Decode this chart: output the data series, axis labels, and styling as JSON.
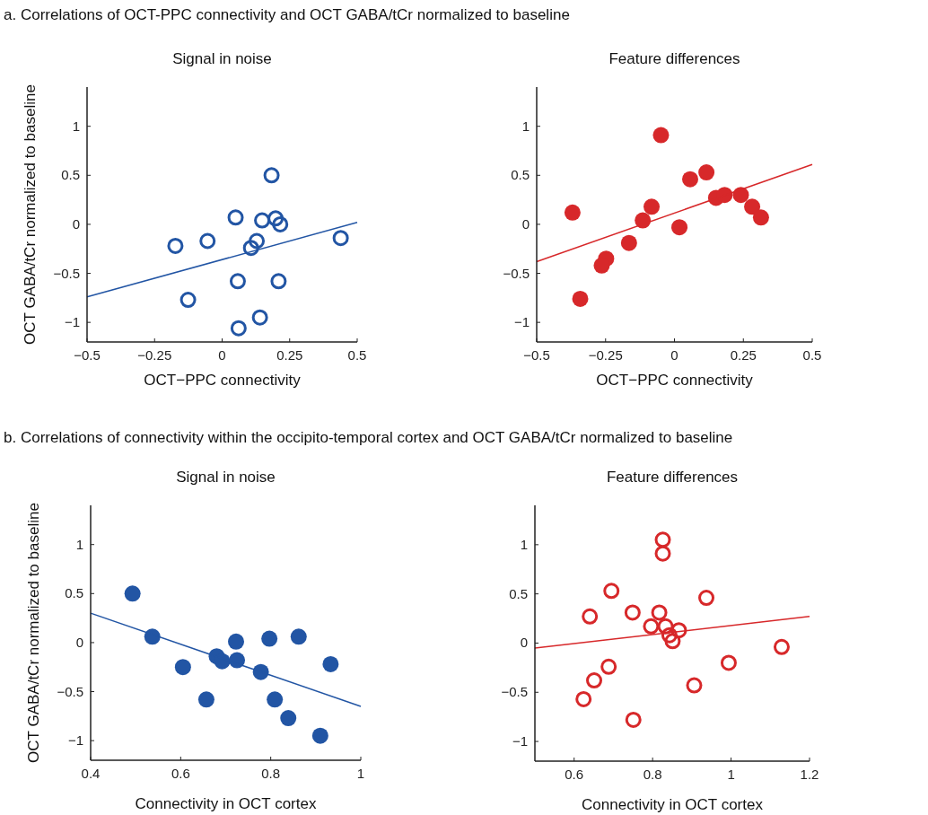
{
  "chart_data": [
    {
      "type": "scatter",
      "title": "Signal in noise",
      "xlabel": "OCT−PPC connectivity",
      "ylabel": "OCT GABA/tCr normalized to baseline",
      "annotations": [
        "a. Correlations of OCT-PPC connectivity and OCT GABA/tCr normalized to baseline"
      ],
      "xlim": [
        -0.5,
        0.5
      ],
      "ylim": [
        -1.2,
        1.4
      ],
      "xticks": [
        -0.5,
        -0.25,
        0,
        0.25,
        0.5
      ],
      "yticks": [
        -1,
        -0.5,
        0,
        0.5,
        1
      ],
      "grid": false,
      "series": [
        {
          "type": "scatter",
          "marker": "circle",
          "color": "#2255a4",
          "x": [
            -0.173,
            -0.054,
            -0.126,
            0.05,
            0.058,
            0.061,
            0.148,
            0.128,
            0.107,
            0.183,
            0.198,
            0.215,
            0.209,
            0.14,
            0.439
          ],
          "values": [
            -0.22,
            -0.17,
            -0.77,
            0.07,
            -0.58,
            -1.06,
            0.04,
            -0.17,
            -0.24,
            0.5,
            0.06,
            0.0,
            -0.58,
            -0.95,
            -0.14
          ]
        },
        {
          "type": "line",
          "color": "#2255a4",
          "x": [
            -0.5,
            0.5
          ],
          "values": [
            -0.74,
            0.02
          ]
        }
      ]
    },
    {
      "type": "scatter",
      "title": "Feature differences",
      "xlabel": "OCT−PPC connectivity",
      "xlim": [
        -0.5,
        0.5
      ],
      "ylim": [
        -1.2,
        1.4
      ],
      "xticks": [
        -0.5,
        -0.25,
        0,
        0.25,
        0.5
      ],
      "yticks": [
        -1,
        -0.5,
        0,
        0.5,
        1
      ],
      "grid": false,
      "series": [
        {
          "type": "scatter",
          "marker": "circle",
          "color": "#d7282a",
          "x": [
            -0.37,
            -0.342,
            -0.049,
            -0.083,
            -0.115,
            -0.165,
            -0.248,
            -0.264,
            0.018,
            0.057,
            0.116,
            0.151,
            0.182,
            0.241,
            0.282,
            0.314
          ],
          "values": [
            0.12,
            -0.76,
            0.91,
            0.18,
            0.04,
            -0.19,
            -0.35,
            -0.42,
            -0.03,
            0.46,
            0.53,
            0.27,
            0.3,
            0.3,
            0.18,
            0.07
          ]
        },
        {
          "type": "line",
          "color": "#d7282a",
          "x": [
            -0.5,
            0.5
          ],
          "values": [
            -0.38,
            0.61
          ]
        }
      ]
    },
    {
      "type": "scatter",
      "title": "Signal in noise",
      "xlabel": "Connectivity in OCT cortex",
      "ylabel": "OCT GABA/tCr normalized to baseline",
      "annotations": [
        "b. Correlations of connectivity within the occipito-temporal cortex and OCT GABA/tCr normalized to baseline"
      ],
      "xlim": [
        0.4,
        1
      ],
      "ylim": [
        -1.2,
        1.4
      ],
      "xticks": [
        0.4,
        0.6,
        0.8,
        1
      ],
      "yticks": [
        -1,
        -0.5,
        0,
        0.5,
        1
      ],
      "grid": false,
      "series": [
        {
          "type": "scatter",
          "marker": "circle",
          "color": "#2255a4",
          "x": [
            0.493,
            0.537,
            0.605,
            0.657,
            0.68,
            0.692,
            0.723,
            0.725,
            0.778,
            0.797,
            0.809,
            0.862,
            0.839,
            0.91,
            0.933
          ],
          "values": [
            0.5,
            0.06,
            -0.25,
            -0.58,
            -0.14,
            -0.19,
            0.01,
            -0.18,
            -0.3,
            0.04,
            -0.58,
            0.06,
            -0.77,
            -0.95,
            -0.22
          ]
        },
        {
          "type": "line",
          "color": "#2255a4",
          "x": [
            0.4,
            1
          ],
          "values": [
            0.3,
            -0.65
          ]
        }
      ]
    },
    {
      "type": "scatter",
      "title": "Feature differences",
      "xlabel": "Connectivity in OCT cortex",
      "xlim": [
        0.5,
        1.2
      ],
      "ylim": [
        -1.2,
        1.4
      ],
      "xticks": [
        0.6,
        0.8,
        1,
        1.2
      ],
      "yticks": [
        -1,
        -0.5,
        0,
        0.5,
        1
      ],
      "grid": false,
      "series": [
        {
          "type": "scatter",
          "marker": "circle",
          "color": "#d7282a",
          "x": [
            0.826,
            0.826,
            0.695,
            0.64,
            0.749,
            0.817,
            0.796,
            0.833,
            0.867,
            0.843,
            0.851,
            0.937,
            1.129,
            0.994,
            0.688,
            0.651,
            0.624,
            0.906,
            0.751
          ],
          "values": [
            1.05,
            0.91,
            0.53,
            0.27,
            0.31,
            0.31,
            0.17,
            0.17,
            0.13,
            0.08,
            0.02,
            0.46,
            -0.04,
            -0.2,
            -0.24,
            -0.38,
            -0.57,
            -0.43,
            -0.78
          ]
        },
        {
          "type": "line",
          "color": "#d7282a",
          "x": [
            0.5,
            1.2
          ],
          "values": [
            -0.05,
            0.27
          ]
        }
      ]
    }
  ]
}
